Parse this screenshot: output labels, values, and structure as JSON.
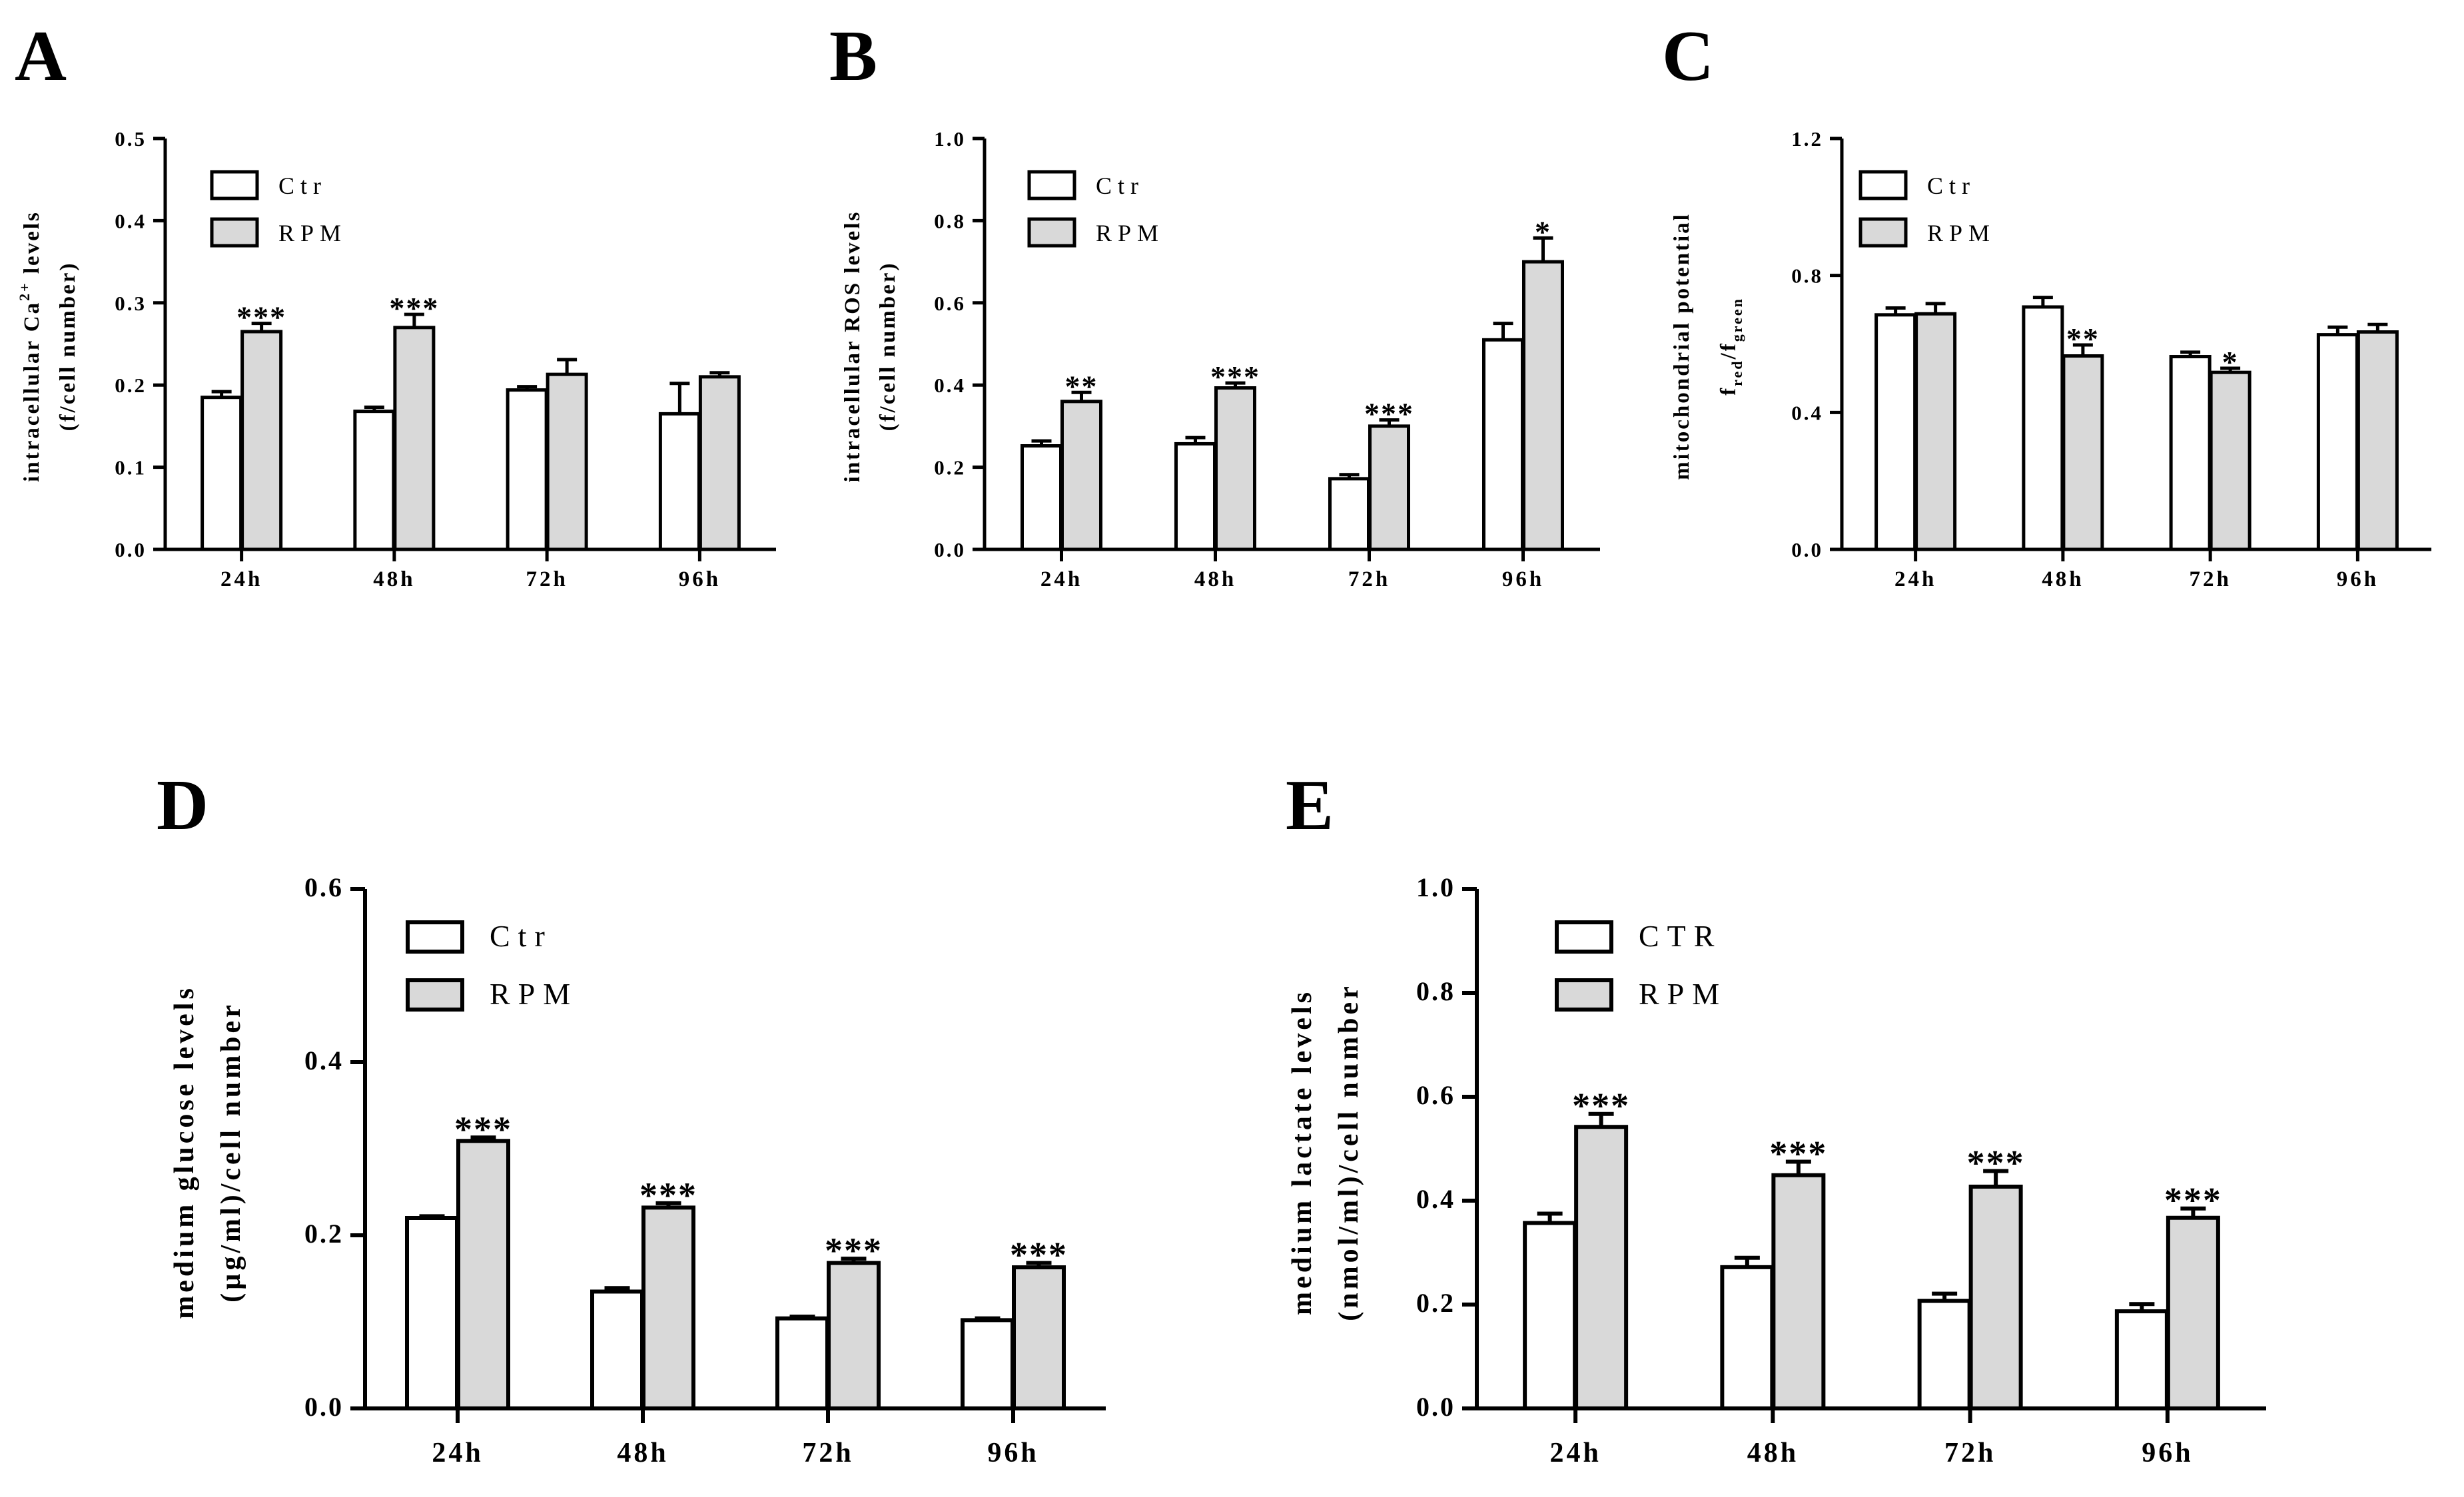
{
  "chart_data": [
    {
      "id": "A",
      "panel_label": "A",
      "type": "bar",
      "categories": [
        "24h",
        "48h",
        "72h",
        "96h"
      ],
      "series": [
        {
          "name": "Ctr",
          "color": "#ffffff",
          "values": [
            0.185,
            0.168,
            0.194,
            0.165
          ],
          "errors": [
            0.007,
            0.005,
            0.004,
            0.037
          ]
        },
        {
          "name": "RPM",
          "color": "#d9d9d9",
          "values": [
            0.265,
            0.27,
            0.213,
            0.21
          ],
          "errors": [
            0.01,
            0.016,
            0.018,
            0.005
          ]
        }
      ],
      "annotations": [
        {
          "category": 0,
          "series": 1,
          "text": "***"
        },
        {
          "category": 1,
          "series": 1,
          "text": "***"
        }
      ],
      "ylim": [
        0,
        0.5
      ],
      "yticks": [
        "0.0",
        "0.1",
        "0.2",
        "0.3",
        "0.4",
        "0.5"
      ],
      "ylabel_line1_prefix": "intracellular Ca",
      "ylabel_line1_sup": "2+",
      "ylabel_line1_suffix": " levels",
      "ylabel_line2": "(f/cell number)",
      "title": ""
    },
    {
      "id": "B",
      "panel_label": "B",
      "type": "bar",
      "categories": [
        "24h",
        "48h",
        "72h",
        "96h"
      ],
      "series": [
        {
          "name": "Ctr",
          "color": "#ffffff",
          "values": [
            0.252,
            0.257,
            0.172,
            0.51
          ],
          "errors": [
            0.012,
            0.015,
            0.01,
            0.04
          ]
        },
        {
          "name": "RPM",
          "color": "#d9d9d9",
          "values": [
            0.36,
            0.393,
            0.3,
            0.7
          ],
          "errors": [
            0.022,
            0.012,
            0.015,
            0.058
          ]
        }
      ],
      "annotations": [
        {
          "category": 0,
          "series": 1,
          "text": "**"
        },
        {
          "category": 1,
          "series": 1,
          "text": "***"
        },
        {
          "category": 2,
          "series": 1,
          "text": "***"
        },
        {
          "category": 3,
          "series": 1,
          "text": "*"
        }
      ],
      "ylim": [
        0,
        1.0
      ],
      "yticks": [
        "0.0",
        "0.2",
        "0.4",
        "0.6",
        "0.8",
        "1.0"
      ],
      "ylabel_line1": "intracellular ROS levels",
      "ylabel_line2": "(f/cell number)",
      "title": ""
    },
    {
      "id": "C",
      "panel_label": "C",
      "type": "bar",
      "categories": [
        "24h",
        "48h",
        "72h",
        "96h"
      ],
      "series": [
        {
          "name": "Ctr",
          "color": "#ffffff",
          "values": [
            0.685,
            0.708,
            0.563,
            0.627
          ],
          "errors": [
            0.02,
            0.028,
            0.013,
            0.022
          ]
        },
        {
          "name": "RPM",
          "color": "#d9d9d9",
          "values": [
            0.688,
            0.565,
            0.517,
            0.635
          ],
          "errors": [
            0.03,
            0.032,
            0.012,
            0.022
          ]
        }
      ],
      "annotations": [
        {
          "category": 1,
          "series": 1,
          "text": "**"
        },
        {
          "category": 2,
          "series": 1,
          "text": "*"
        }
      ],
      "ylim": [
        0,
        1.2
      ],
      "yticks": [
        "0.0",
        "0.4",
        "0.8",
        "1.2"
      ],
      "ylabel_line1": "mitochondrial potential",
      "ylabel_f": "f",
      "ylabel_sub1": "red",
      "ylabel_slash": "/f",
      "ylabel_sub2": "green",
      "title": ""
    },
    {
      "id": "D",
      "panel_label": "D",
      "type": "bar",
      "categories": [
        "24h",
        "48h",
        "72h",
        "96h"
      ],
      "series": [
        {
          "name": "Ctr",
          "color": "#ffffff",
          "values": [
            0.22,
            0.135,
            0.104,
            0.102
          ],
          "errors": [
            0.002,
            0.004,
            0.002,
            0.002
          ]
        },
        {
          "name": "RPM",
          "color": "#d9d9d9",
          "values": [
            0.309,
            0.232,
            0.168,
            0.163
          ],
          "errors": [
            0.004,
            0.005,
            0.005,
            0.005
          ]
        }
      ],
      "annotations": [
        {
          "category": 0,
          "series": 1,
          "text": "***"
        },
        {
          "category": 1,
          "series": 1,
          "text": "***"
        },
        {
          "category": 2,
          "series": 1,
          "text": "***"
        },
        {
          "category": 3,
          "series": 1,
          "text": "***"
        }
      ],
      "ylim": [
        0,
        0.6
      ],
      "yticks": [
        "0.0",
        "0.2",
        "0.4",
        "0.6"
      ],
      "ylabel_line1": "medium glucose levels",
      "ylabel_line2": "(µg/ml)/cell number",
      "title": ""
    },
    {
      "id": "E",
      "panel_label": "E",
      "type": "bar",
      "categories": [
        "24h",
        "48h",
        "72h",
        "96h"
      ],
      "series": [
        {
          "name": "CTR",
          "color": "#ffffff",
          "values": [
            0.357,
            0.272,
            0.207,
            0.187
          ],
          "errors": [
            0.018,
            0.018,
            0.014,
            0.014
          ]
        },
        {
          "name": "RPM",
          "color": "#d9d9d9",
          "values": [
            0.542,
            0.449,
            0.427,
            0.367
          ],
          "errors": [
            0.025,
            0.026,
            0.03,
            0.018
          ]
        }
      ],
      "annotations": [
        {
          "category": 0,
          "series": 1,
          "text": "***"
        },
        {
          "category": 1,
          "series": 1,
          "text": "***"
        },
        {
          "category": 2,
          "series": 1,
          "text": "***"
        },
        {
          "category": 3,
          "series": 1,
          "text": "***"
        }
      ],
      "ylim": [
        0,
        1.0
      ],
      "yticks": [
        "0.0",
        "0.2",
        "0.4",
        "0.6",
        "0.8",
        "1.0"
      ],
      "ylabel_line1": "medium lactate levels",
      "ylabel_line2": "(nmol/ml)/cell number",
      "title": ""
    }
  ]
}
